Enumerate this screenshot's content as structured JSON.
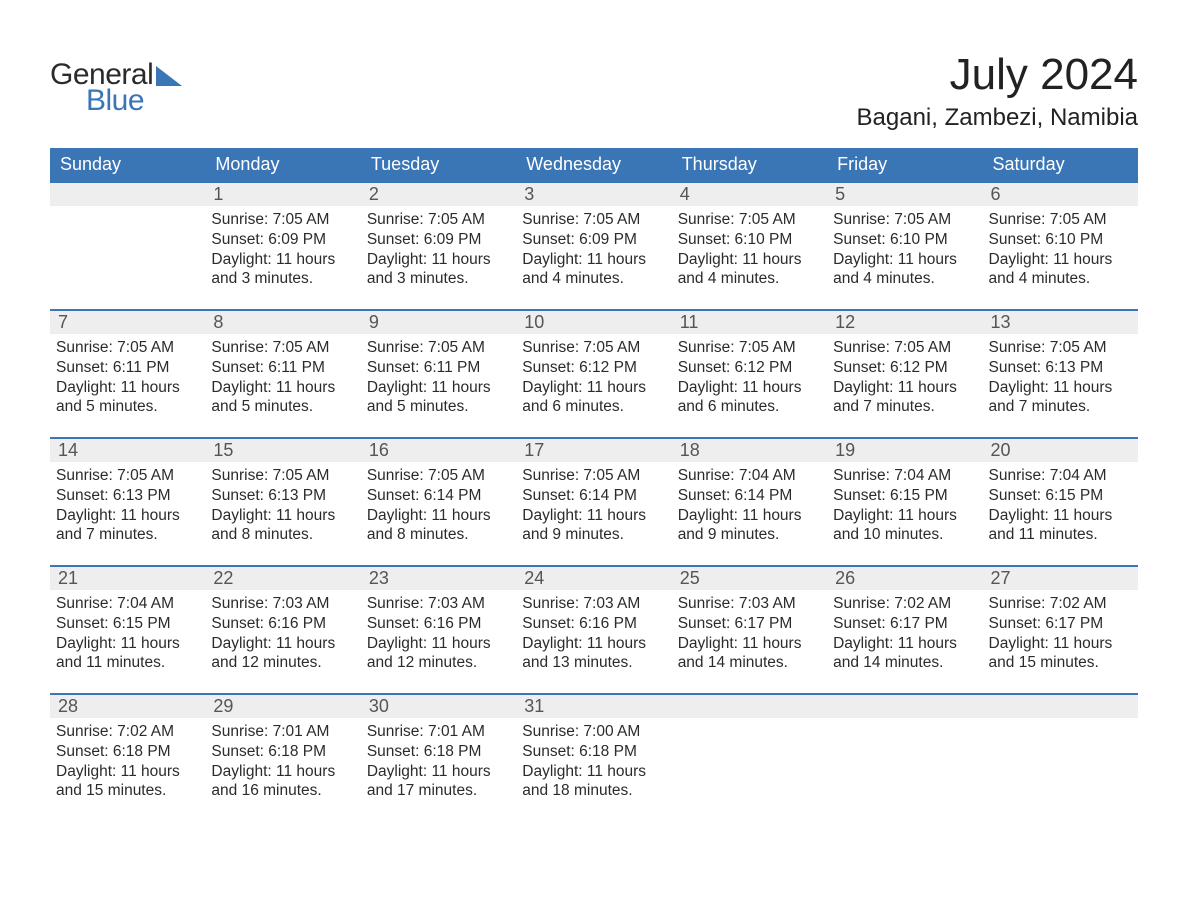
{
  "brand": {
    "line1": "General",
    "line2": "Blue"
  },
  "title": "July 2024",
  "location": "Bagani, Zambezi, Namibia",
  "colors": {
    "header_bg": "#3a75b6",
    "header_text": "#ffffff",
    "daynum_bg": "#eeeeee",
    "daynum_text": "#555555",
    "body_text": "#2b2b2b",
    "page_bg": "#ffffff",
    "rule": "#3a75b6",
    "brand_blue": "#3a75b6"
  },
  "fonts": {
    "title_size_pt": 33,
    "location_size_pt": 18,
    "header_size_pt": 14,
    "daynum_size_pt": 14,
    "body_size_pt": 12
  },
  "day_headers": [
    "Sunday",
    "Monday",
    "Tuesday",
    "Wednesday",
    "Thursday",
    "Friday",
    "Saturday"
  ],
  "days": {
    "1": {
      "sunrise": "7:05 AM",
      "sunset": "6:09 PM",
      "daylight": "11 hours and 3 minutes."
    },
    "2": {
      "sunrise": "7:05 AM",
      "sunset": "6:09 PM",
      "daylight": "11 hours and 3 minutes."
    },
    "3": {
      "sunrise": "7:05 AM",
      "sunset": "6:09 PM",
      "daylight": "11 hours and 4 minutes."
    },
    "4": {
      "sunrise": "7:05 AM",
      "sunset": "6:10 PM",
      "daylight": "11 hours and 4 minutes."
    },
    "5": {
      "sunrise": "7:05 AM",
      "sunset": "6:10 PM",
      "daylight": "11 hours and 4 minutes."
    },
    "6": {
      "sunrise": "7:05 AM",
      "sunset": "6:10 PM",
      "daylight": "11 hours and 4 minutes."
    },
    "7": {
      "sunrise": "7:05 AM",
      "sunset": "6:11 PM",
      "daylight": "11 hours and 5 minutes."
    },
    "8": {
      "sunrise": "7:05 AM",
      "sunset": "6:11 PM",
      "daylight": "11 hours and 5 minutes."
    },
    "9": {
      "sunrise": "7:05 AM",
      "sunset": "6:11 PM",
      "daylight": "11 hours and 5 minutes."
    },
    "10": {
      "sunrise": "7:05 AM",
      "sunset": "6:12 PM",
      "daylight": "11 hours and 6 minutes."
    },
    "11": {
      "sunrise": "7:05 AM",
      "sunset": "6:12 PM",
      "daylight": "11 hours and 6 minutes."
    },
    "12": {
      "sunrise": "7:05 AM",
      "sunset": "6:12 PM",
      "daylight": "11 hours and 7 minutes."
    },
    "13": {
      "sunrise": "7:05 AM",
      "sunset": "6:13 PM",
      "daylight": "11 hours and 7 minutes."
    },
    "14": {
      "sunrise": "7:05 AM",
      "sunset": "6:13 PM",
      "daylight": "11 hours and 7 minutes."
    },
    "15": {
      "sunrise": "7:05 AM",
      "sunset": "6:13 PM",
      "daylight": "11 hours and 8 minutes."
    },
    "16": {
      "sunrise": "7:05 AM",
      "sunset": "6:14 PM",
      "daylight": "11 hours and 8 minutes."
    },
    "17": {
      "sunrise": "7:05 AM",
      "sunset": "6:14 PM",
      "daylight": "11 hours and 9 minutes."
    },
    "18": {
      "sunrise": "7:04 AM",
      "sunset": "6:14 PM",
      "daylight": "11 hours and 9 minutes."
    },
    "19": {
      "sunrise": "7:04 AM",
      "sunset": "6:15 PM",
      "daylight": "11 hours and 10 minutes."
    },
    "20": {
      "sunrise": "7:04 AM",
      "sunset": "6:15 PM",
      "daylight": "11 hours and 11 minutes."
    },
    "21": {
      "sunrise": "7:04 AM",
      "sunset": "6:15 PM",
      "daylight": "11 hours and 11 minutes."
    },
    "22": {
      "sunrise": "7:03 AM",
      "sunset": "6:16 PM",
      "daylight": "11 hours and 12 minutes."
    },
    "23": {
      "sunrise": "7:03 AM",
      "sunset": "6:16 PM",
      "daylight": "11 hours and 12 minutes."
    },
    "24": {
      "sunrise": "7:03 AM",
      "sunset": "6:16 PM",
      "daylight": "11 hours and 13 minutes."
    },
    "25": {
      "sunrise": "7:03 AM",
      "sunset": "6:17 PM",
      "daylight": "11 hours and 14 minutes."
    },
    "26": {
      "sunrise": "7:02 AM",
      "sunset": "6:17 PM",
      "daylight": "11 hours and 14 minutes."
    },
    "27": {
      "sunrise": "7:02 AM",
      "sunset": "6:17 PM",
      "daylight": "11 hours and 15 minutes."
    },
    "28": {
      "sunrise": "7:02 AM",
      "sunset": "6:18 PM",
      "daylight": "11 hours and 15 minutes."
    },
    "29": {
      "sunrise": "7:01 AM",
      "sunset": "6:18 PM",
      "daylight": "11 hours and 16 minutes."
    },
    "30": {
      "sunrise": "7:01 AM",
      "sunset": "6:18 PM",
      "daylight": "11 hours and 17 minutes."
    },
    "31": {
      "sunrise": "7:00 AM",
      "sunset": "6:18 PM",
      "daylight": "11 hours and 18 minutes."
    }
  },
  "labels": {
    "sunrise": "Sunrise: ",
    "sunset": "Sunset: ",
    "daylight": "Daylight: "
  },
  "grid": {
    "first_weekday_index": 1,
    "num_days": 31,
    "num_columns": 7
  }
}
